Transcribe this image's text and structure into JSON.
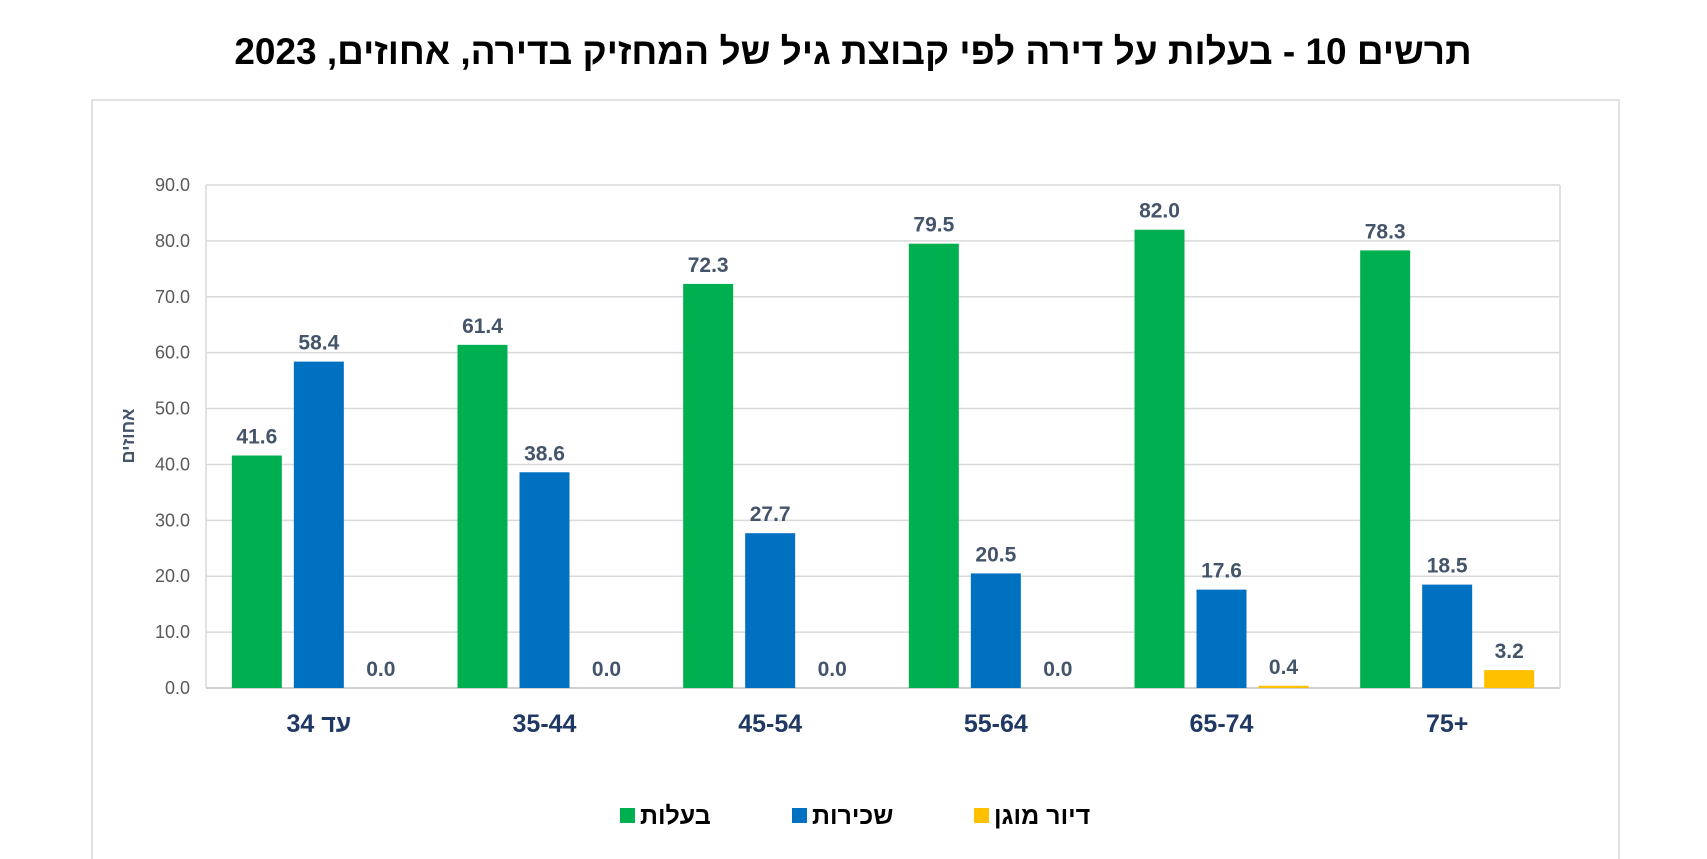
{
  "chart_data": {
    "type": "bar",
    "title": "תרשים 10 - בעלות על דירה לפי קבוצת גיל של המחזיק בדירה, אחוזים, 2023",
    "xlabel": "",
    "ylabel": "אחוזים",
    "ylim": [
      0,
      90
    ],
    "yticks": [
      "0.0",
      "10.0",
      "20.0",
      "30.0",
      "40.0",
      "50.0",
      "60.0",
      "70.0",
      "80.0",
      "90.0"
    ],
    "grid": true,
    "legend_position": "bottom",
    "categories": [
      "עד 34",
      "35-44",
      "45-54",
      "55-64",
      "65-74",
      "+75"
    ],
    "series": [
      {
        "name": "בעלות",
        "color": "#00b050",
        "values": [
          41.6,
          61.4,
          72.3,
          79.5,
          82.0,
          78.3
        ]
      },
      {
        "name": "שכירות",
        "color": "#0070c0",
        "values": [
          58.4,
          38.6,
          27.7,
          20.5,
          17.6,
          18.5
        ]
      },
      {
        "name": "דיור מוגן",
        "color": "#ffc000",
        "values": [
          0.0,
          0.0,
          0.0,
          0.0,
          0.4,
          3.2
        ]
      }
    ]
  }
}
